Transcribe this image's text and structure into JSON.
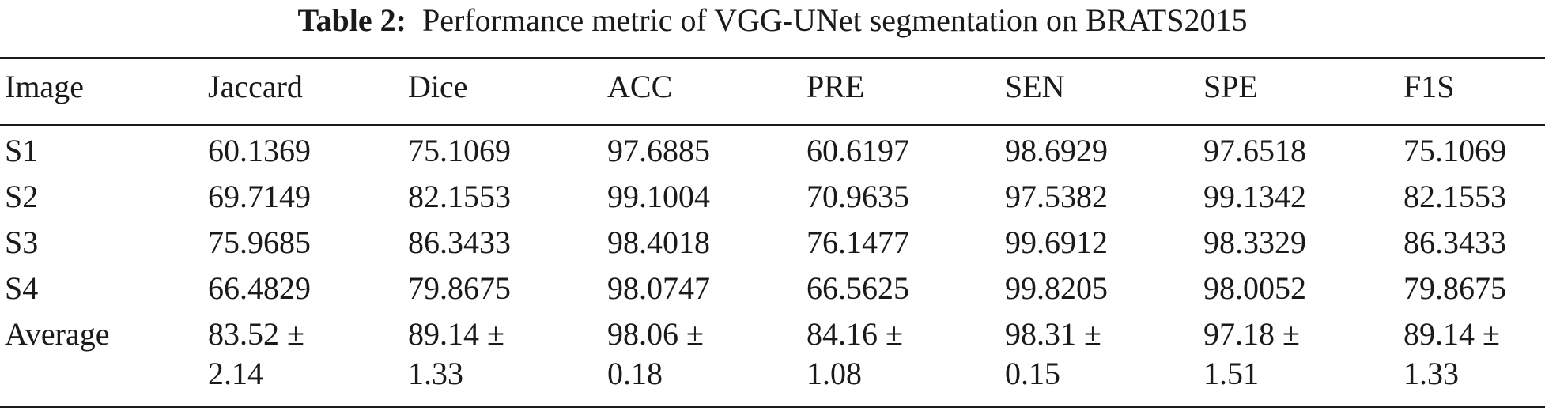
{
  "caption": {
    "label": "Table 2:",
    "text": "Performance metric of VGG-UNet segmentation on BRATS2015"
  },
  "table": {
    "headers": [
      "Image",
      "Jaccard",
      "Dice",
      "ACC",
      "PRE",
      "SEN",
      "SPE",
      "F1S"
    ],
    "rows": [
      [
        "S1",
        "60.1369",
        "75.1069",
        "97.6885",
        "60.6197",
        "98.6929",
        "97.6518",
        "75.1069"
      ],
      [
        "S2",
        "69.7149",
        "82.1553",
        "99.1004",
        "70.9635",
        "97.5382",
        "99.1342",
        "82.1553"
      ],
      [
        "S3",
        "75.9685",
        "86.3433",
        "98.4018",
        "76.1477",
        "99.6912",
        "98.3329",
        "86.3433"
      ],
      [
        "S4",
        "66.4829",
        "79.8675",
        "98.0747",
        "66.5625",
        "99.8205",
        "98.0052",
        "79.8675"
      ]
    ],
    "average": {
      "label": "Average",
      "values": [
        [
          "83.52 ±",
          "2.14"
        ],
        [
          "89.14 ±",
          "1.33"
        ],
        [
          "98.06 ±",
          "0.18"
        ],
        [
          "84.16 ±",
          "1.08"
        ],
        [
          "98.31 ±",
          "0.15"
        ],
        [
          "97.18 ±",
          "1.51"
        ],
        [
          "89.14 ±",
          "1.33"
        ]
      ]
    }
  }
}
